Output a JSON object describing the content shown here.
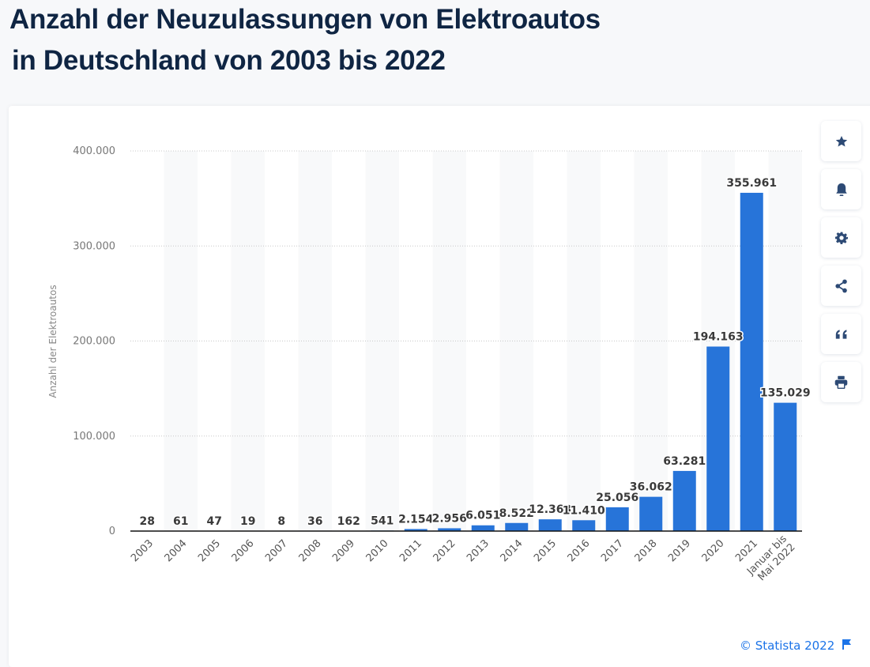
{
  "page": {
    "title_line1": "Anzahl der Neuzulassungen von Elektroautos",
    "title_line2": "in Deutschland von 2003 bis 2022"
  },
  "toolbar": [
    {
      "icon": "star-icon",
      "label": "favorite"
    },
    {
      "icon": "bell-icon",
      "label": "notification"
    },
    {
      "icon": "gear-icon",
      "label": "settings"
    },
    {
      "icon": "share-icon",
      "label": "share"
    },
    {
      "icon": "quote-icon",
      "label": "cite"
    },
    {
      "icon": "print-icon",
      "label": "print"
    }
  ],
  "footer": {
    "copyright": "© Statista 2022",
    "flag_icon": "flag-icon"
  },
  "colors": {
    "bar": "#2774d9",
    "title": "#0f2543",
    "link": "#1b73e8",
    "icon": "#2d4a75"
  },
  "chart_data": {
    "type": "bar",
    "title": "Anzahl der Neuzulassungen von Elektroautos in Deutschland von 2003 bis 2022",
    "xlabel": "",
    "ylabel": "Anzahl der Elektroautos",
    "ylim": [
      0,
      400000
    ],
    "yticks": [
      0,
      100000,
      200000,
      300000,
      400000
    ],
    "ytick_labels": [
      "0",
      "100.000",
      "200.000",
      "300.000",
      "400.000"
    ],
    "grid": true,
    "categories": [
      "2003",
      "2004",
      "2005",
      "2006",
      "2007",
      "2008",
      "2009",
      "2010",
      "2011",
      "2012",
      "2013",
      "2014",
      "2015",
      "2016",
      "2017",
      "2018",
      "2019",
      "2020",
      "2021",
      "Januar bis|Mai 2022"
    ],
    "values": [
      28,
      61,
      47,
      19,
      8,
      36,
      162,
      541,
      2154,
      2956,
      6051,
      8522,
      12363,
      11410,
      25056,
      36062,
      63281,
      194163,
      355961,
      135029
    ],
    "value_labels": [
      "28",
      "61",
      "47",
      "19",
      "8",
      "36",
      "162",
      "541",
      "2.154",
      "2.956",
      "6.051",
      "8.522",
      "12.363",
      "11.410",
      "25.056",
      "36.062",
      "63.281",
      "194.163",
      "355.961",
      "135.029"
    ]
  }
}
